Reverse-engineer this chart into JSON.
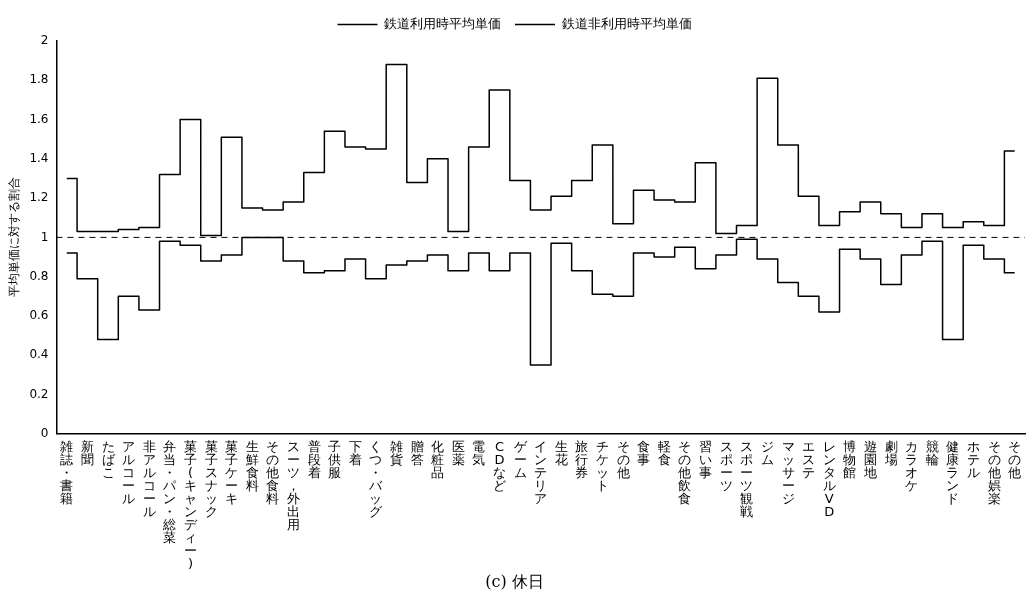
{
  "chart_data": {
    "type": "step",
    "title": "(c) 休日",
    "ylabel": "平均単価に対する割合",
    "categories": [
      "雑誌・書籍",
      "新聞",
      "たばこ",
      "アルコール",
      "非アルコール",
      "弁当・パン・総菜",
      "菓子(キャンディー)",
      "菓子スナック",
      "菓子ケーキ",
      "生鮮食料",
      "その他食料",
      "スーツ，外出用",
      "普段着",
      "子供服",
      "下着",
      "くつ・バッグ",
      "雑貨",
      "贈答",
      "化粧品",
      "医薬",
      "電気",
      "CDなど",
      "ゲーム",
      "インテリア",
      "生花",
      "旅行券",
      "チケット",
      "その他",
      "食事",
      "軽食",
      "その他飲食",
      "習い事",
      "スポーツ",
      "スポーツ観戦",
      "ジム",
      "マッサージ",
      "エステ",
      "レンタルVD",
      "博物館",
      "遊園地",
      "劇場",
      "カラオケ",
      "競輪",
      "健康ランド",
      "ホテル",
      "その他娯楽",
      "その他"
    ],
    "series": [
      {
        "name": "鉄道利用時平均単価",
        "color": "#000000",
        "values": [
          1.3,
          1.03,
          1.03,
          1.04,
          1.05,
          1.32,
          1.6,
          1.01,
          1.51,
          1.15,
          1.14,
          1.18,
          1.33,
          1.54,
          1.46,
          1.45,
          1.88,
          1.28,
          1.4,
          1.03,
          1.46,
          1.75,
          1.29,
          1.14,
          1.21,
          1.29,
          1.47,
          1.07,
          1.24,
          1.19,
          1.18,
          1.38,
          1.02,
          1.06,
          1.81,
          1.47,
          1.21,
          1.06,
          1.13,
          1.18,
          1.12,
          1.05,
          1.12,
          1.05,
          1.08,
          1.06,
          1.44
        ]
      },
      {
        "name": "鉄道非利用時平均単価",
        "color": "#000000",
        "values": [
          0.92,
          0.79,
          0.48,
          0.7,
          0.63,
          0.98,
          0.96,
          0.88,
          0.91,
          1.0,
          1.0,
          0.88,
          0.82,
          0.83,
          0.89,
          0.79,
          0.86,
          0.88,
          0.91,
          0.83,
          0.92,
          0.83,
          0.92,
          0.35,
          0.97,
          0.83,
          0.71,
          0.7,
          0.92,
          0.9,
          0.95,
          0.84,
          0.91,
          0.99,
          0.89,
          0.77,
          0.7,
          0.62,
          0.94,
          0.89,
          0.76,
          0.91,
          0.98,
          0.48,
          0.96,
          0.89,
          0.82
        ]
      }
    ],
    "ylim": [
      0,
      2
    ],
    "yticks": [
      0,
      0.2,
      0.4,
      0.6,
      0.8,
      1,
      1.2,
      1.4,
      1.6,
      1.8,
      2
    ],
    "ref_lines": [
      {
        "axis": "y",
        "value": 1,
        "color": "#000000",
        "line_style": "dashed"
      }
    ],
    "grid": false,
    "legend": "top"
  }
}
